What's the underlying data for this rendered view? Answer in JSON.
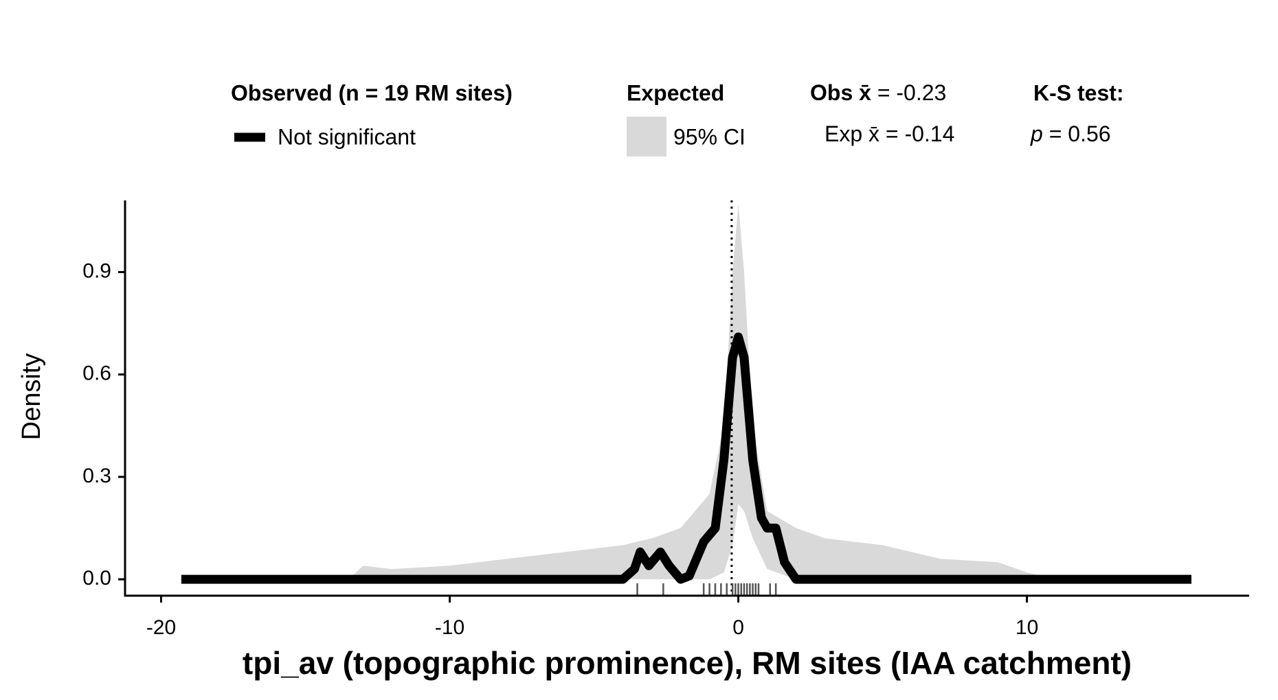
{
  "chart_data": {
    "type": "density",
    "legend_title_observed": "Observed (n = 19 RM sites)",
    "legend_title_expected": "Expected",
    "x_label": "tpi_av (topographic prominence), RM sites (IAA catchment)",
    "y_label": "Density",
    "xlim": [
      -21.25,
      17.7
    ],
    "ylim": [
      -0.048,
      1.11
    ],
    "xticks": [
      -20,
      -10,
      0,
      10
    ],
    "yticks": [
      {
        "value": 0,
        "label": "0.0"
      },
      0.3,
      0.6,
      0.9
    ],
    "series": [
      {
        "name": "Not significant",
        "color": "#000000",
        "x": [
          -19.3,
          -4,
          -3.6,
          -3.4,
          -3.1,
          -2.7,
          -2.4,
          -2,
          -1.7,
          -1.2,
          -0.8,
          -0.5,
          -0.2,
          0,
          0.2,
          0.5,
          0.8,
          1.0,
          1.3,
          1.6,
          2,
          15.7
        ],
        "values": [
          0,
          0,
          0.03,
          0.08,
          0.04,
          0.08,
          0.04,
          0,
          0.01,
          0.11,
          0.15,
          0.35,
          0.65,
          0.71,
          0.65,
          0.35,
          0.18,
          0.15,
          0.15,
          0.05,
          0,
          0
        ]
      }
    ],
    "band": {
      "name": "95% CI",
      "color": "#d9d9d9",
      "x": [
        -13.5,
        -13,
        -12,
        -10,
        -8,
        -6,
        -4,
        -3,
        -2,
        -1,
        -0.5,
        -0.2,
        0,
        0.2,
        0.5,
        1,
        2,
        3,
        5,
        7,
        9,
        10,
        11
      ],
      "upper": [
        0,
        0.04,
        0.03,
        0.04,
        0.06,
        0.08,
        0.1,
        0.12,
        0.15,
        0.25,
        0.45,
        0.9,
        1.1,
        0.9,
        0.45,
        0.2,
        0.15,
        0.12,
        0.1,
        0.06,
        0.05,
        0.02,
        0
      ],
      "lower": [
        0,
        0,
        0,
        0,
        0,
        0,
        0,
        0,
        0,
        0,
        0.02,
        0.1,
        0.22,
        0.2,
        0.12,
        0.03,
        0,
        0,
        0,
        0,
        0,
        0,
        0
      ]
    },
    "rug": [
      -3.5,
      -2.6,
      -1.2,
      -1.0,
      -0.8,
      -0.6,
      -0.4,
      -0.2,
      -0.1,
      0.0,
      0.1,
      0.2,
      0.3,
      0.4,
      0.5,
      0.6,
      0.7,
      1.1,
      1.3
    ],
    "obs_mean": {
      "label": "Obs x̄",
      "value": -0.23,
      "value_label": "= -0.23"
    },
    "exp_mean": {
      "label": "Exp x̄",
      "value": -0.14,
      "value_label": "= -0.14"
    },
    "ks_test": {
      "label": "K-S test:",
      "p_label": "p",
      "value": 0.56,
      "value_label": "= 0.56"
    }
  }
}
